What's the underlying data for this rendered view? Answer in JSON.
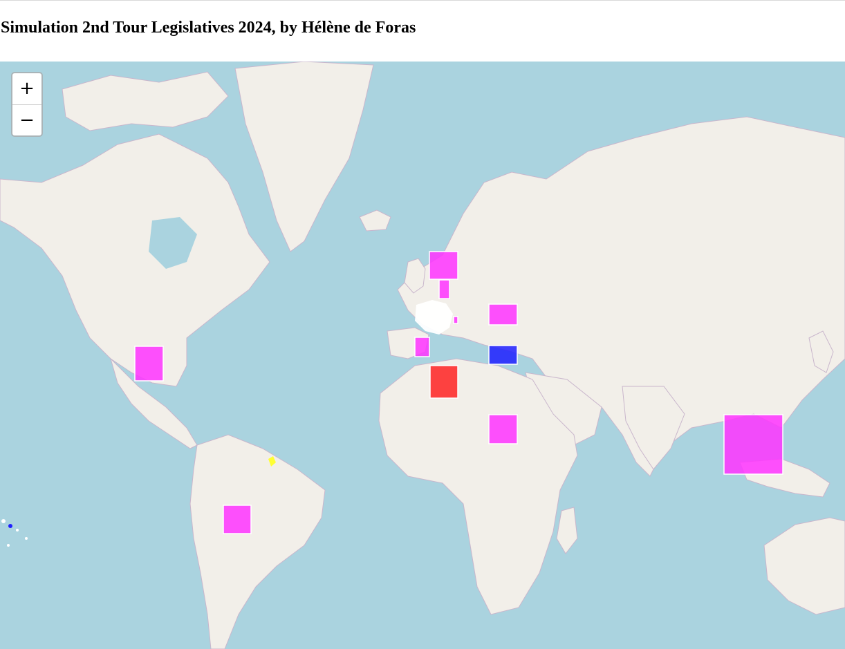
{
  "page": {
    "title": "Simulation 2nd Tour Legislatives 2024, by Hélène de Foras"
  },
  "zoom_control": {
    "zoom_in_label": "+",
    "zoom_out_label": "−"
  },
  "map": {
    "base_layer": "world map tiles",
    "colors": {
      "ocean": "#aad3df",
      "land": "#f2efe9",
      "border": "#c4a8c6",
      "markers": {
        "magenta": "#ff33ff",
        "red": "#ff2222",
        "blue": "#1f1fff",
        "yellow": "#ffff33",
        "white": "#ffffff"
      }
    },
    "markers": [
      {
        "id": "northern-europe",
        "color": "magenta"
      },
      {
        "id": "benelux",
        "color": "magenta"
      },
      {
        "id": "eastern-europe",
        "color": "magenta"
      },
      {
        "id": "switzerland",
        "color": "magenta"
      },
      {
        "id": "iberia",
        "color": "magenta"
      },
      {
        "id": "eastern-mediterranean",
        "color": "blue"
      },
      {
        "id": "north-africa",
        "color": "red"
      },
      {
        "id": "central-africa",
        "color": "magenta"
      },
      {
        "id": "north-america",
        "color": "magenta"
      },
      {
        "id": "south-america",
        "color": "magenta"
      },
      {
        "id": "asia-oceania",
        "color": "magenta"
      },
      {
        "id": "french-guiana",
        "color": "yellow"
      },
      {
        "id": "france-metropole",
        "color": "white"
      }
    ]
  }
}
